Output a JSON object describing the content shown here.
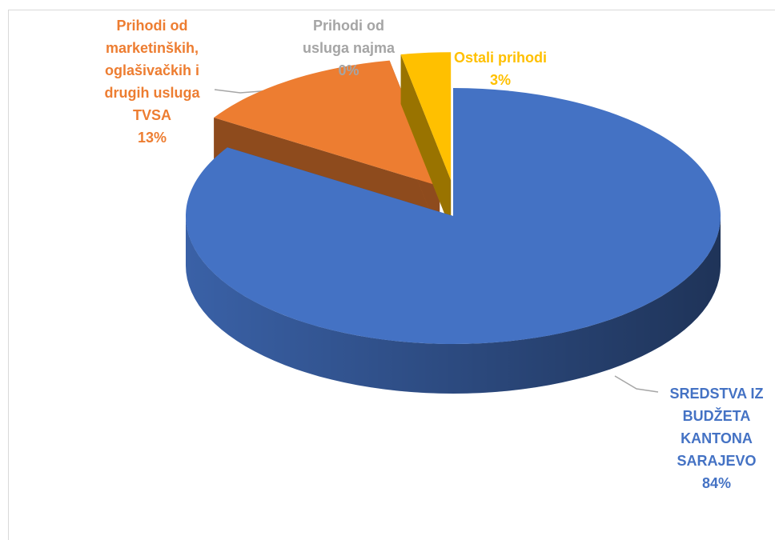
{
  "chart_data": {
    "type": "pie3d",
    "categories": [
      "SREDSTVA IZ BUDŽETA KANTONA SARAJEVO",
      "Prihodi od marketinških, oglašivačkih i drugih usluga TVSA",
      "Prihodi od usluga najma",
      "Ostali prihodi"
    ],
    "values": [
      84,
      13,
      0,
      3
    ],
    "value_labels": [
      "84%",
      "13%",
      "0%",
      "3%"
    ],
    "colors": [
      "#4472c4",
      "#ed7d31",
      "#a5a5a5",
      "#ffc000"
    ]
  }
}
